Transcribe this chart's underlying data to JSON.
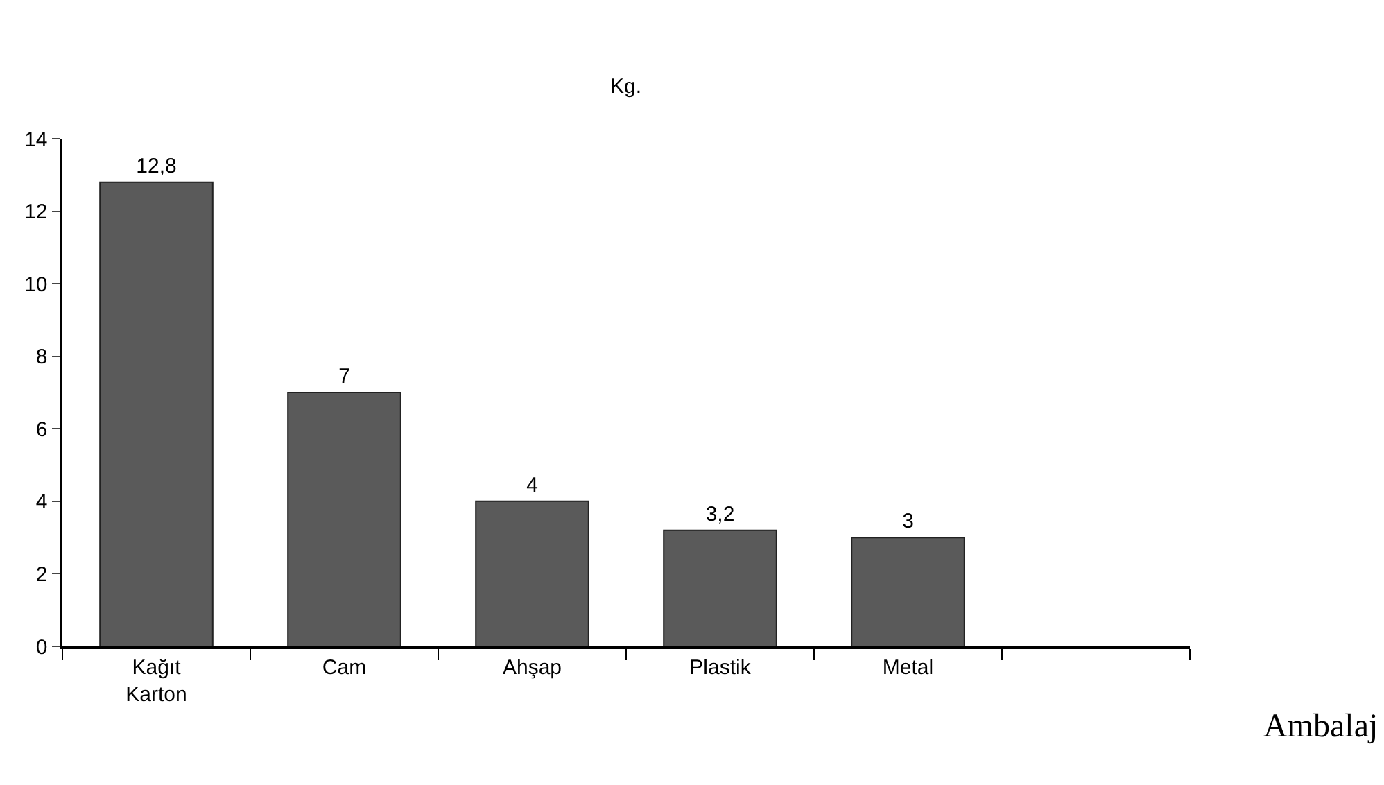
{
  "chart_data": {
    "type": "bar",
    "ylabel": "Kg.",
    "xlabel": "Ambalaj",
    "categories": [
      "Kağıt\nKarton",
      "Cam",
      "Ahşap",
      "Plastik",
      "Metal",
      null
    ],
    "values": [
      12.8,
      7,
      4,
      3.2,
      3,
      null
    ],
    "value_labels": [
      "12,8",
      "7",
      "4",
      "3,2",
      "3",
      null
    ],
    "color": "#5a5a5a",
    "ylim": [
      0,
      14
    ],
    "yticks": [
      0,
      2,
      4,
      6,
      8,
      10,
      12,
      14
    ]
  }
}
